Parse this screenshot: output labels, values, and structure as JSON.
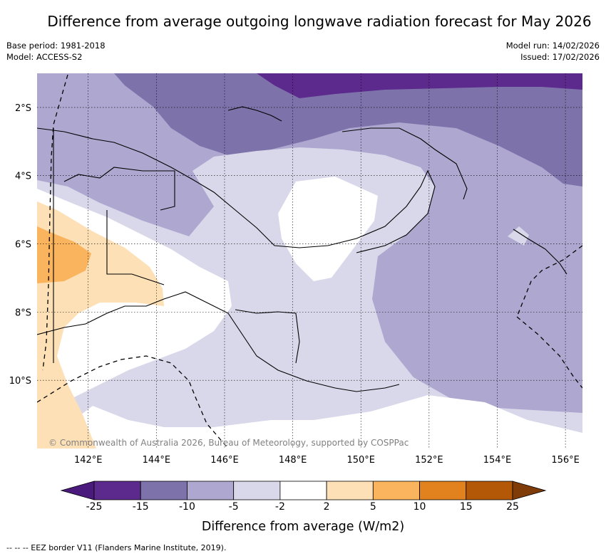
{
  "title": "Difference from average outgoing longwave radiation forecast for May 2026",
  "meta_left": {
    "base_period": "Base period: 1981-2018",
    "model": "Model: ACCESS-S2"
  },
  "meta_right": {
    "model_run": "Model run: 14/02/2026",
    "issued": "Issued: 17/02/2026"
  },
  "map": {
    "lon_range": [
      140.5,
      156.5
    ],
    "lat_range": [
      -12.0,
      -1.0
    ],
    "lon_ticks": [
      142,
      144,
      146,
      148,
      150,
      152,
      154,
      156
    ],
    "lat_ticks": [
      -2,
      -4,
      -6,
      -8,
      -10
    ],
    "lon_labels": [
      "142°E",
      "144°E",
      "146°E",
      "148°E",
      "150°E",
      "152°E",
      "154°E",
      "156°E"
    ],
    "lat_labels": [
      "2°S",
      "4°S",
      "6°S",
      "8°S",
      "10°S"
    ],
    "copyright": "© Commonwealth of Australia 2026, Bureau of Meteorology, supported by COSPPac"
  },
  "colorbar": {
    "labels": [
      "-25",
      "-15",
      "-10",
      "-5",
      "-2",
      "2",
      "5",
      "10",
      "15",
      "25"
    ],
    "colors": [
      "#4a1a7c",
      "#5c2a8c",
      "#7e72aa",
      "#aea8d0",
      "#d8d8ea",
      "#ffffff",
      "#fde0b6",
      "#fbb45e",
      "#e1821e",
      "#b35806",
      "#7f3b08"
    ],
    "title": "Difference from average (W/m2)"
  },
  "footnote": "-- -- -- EEZ border V11 (Flanders Marine Institute, 2019)."
}
